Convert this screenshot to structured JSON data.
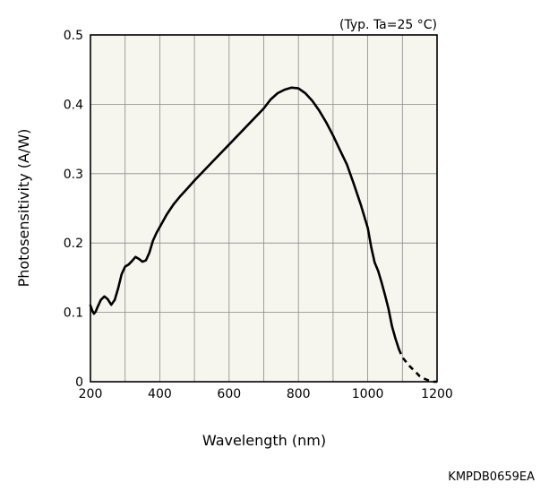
{
  "chart_data": {
    "type": "line",
    "title": "",
    "condition_note": "(Typ. Ta=25 °C)",
    "xlabel": "Wavelength (nm)",
    "ylabel": "Photosensitivity (A/W)",
    "xlim": [
      200,
      1200
    ],
    "ylim": [
      0,
      0.5
    ],
    "xticks": [
      "200",
      "400",
      "600",
      "800",
      "1000",
      "1200"
    ],
    "yticks": [
      "0",
      "0.1",
      "0.2",
      "0.3",
      "0.4",
      "0.5"
    ],
    "grid": true,
    "plot_background": "#f6f5ee",
    "line_color": "#000000",
    "series": [
      {
        "style": "solid",
        "x": [
          200,
          205,
          210,
          215,
          220,
          230,
          240,
          250,
          260,
          270,
          280,
          290,
          300,
          310,
          320,
          330,
          340,
          350,
          360,
          370,
          380,
          390,
          400,
          420,
          440,
          460,
          480,
          500,
          550,
          600,
          650,
          700,
          720,
          740,
          760,
          780,
          800,
          820,
          840,
          860,
          880,
          900,
          920,
          940,
          960,
          980,
          1000,
          1010,
          1020,
          1030,
          1040,
          1050,
          1060,
          1070,
          1080,
          1090
        ],
        "y": [
          0.11,
          0.103,
          0.098,
          0.101,
          0.107,
          0.118,
          0.123,
          0.119,
          0.111,
          0.118,
          0.135,
          0.155,
          0.166,
          0.169,
          0.174,
          0.18,
          0.177,
          0.173,
          0.175,
          0.186,
          0.203,
          0.214,
          0.223,
          0.241,
          0.256,
          0.268,
          0.279,
          0.29,
          0.316,
          0.342,
          0.368,
          0.394,
          0.407,
          0.416,
          0.421,
          0.424,
          0.423,
          0.416,
          0.405,
          0.391,
          0.374,
          0.355,
          0.334,
          0.313,
          0.285,
          0.255,
          0.222,
          0.194,
          0.172,
          0.16,
          0.143,
          0.125,
          0.105,
          0.08,
          0.062,
          0.047
        ]
      },
      {
        "style": "dashed",
        "x": [
          1090,
          1100,
          1110,
          1120,
          1130,
          1140,
          1150,
          1160,
          1170,
          1180,
          1190,
          1200
        ],
        "y": [
          0.047,
          0.035,
          0.029,
          0.023,
          0.018,
          0.013,
          0.008,
          0.005,
          0.003,
          0.001,
          0.0,
          0.0
        ]
      }
    ]
  },
  "figure_code": "KMPDB0659EA"
}
